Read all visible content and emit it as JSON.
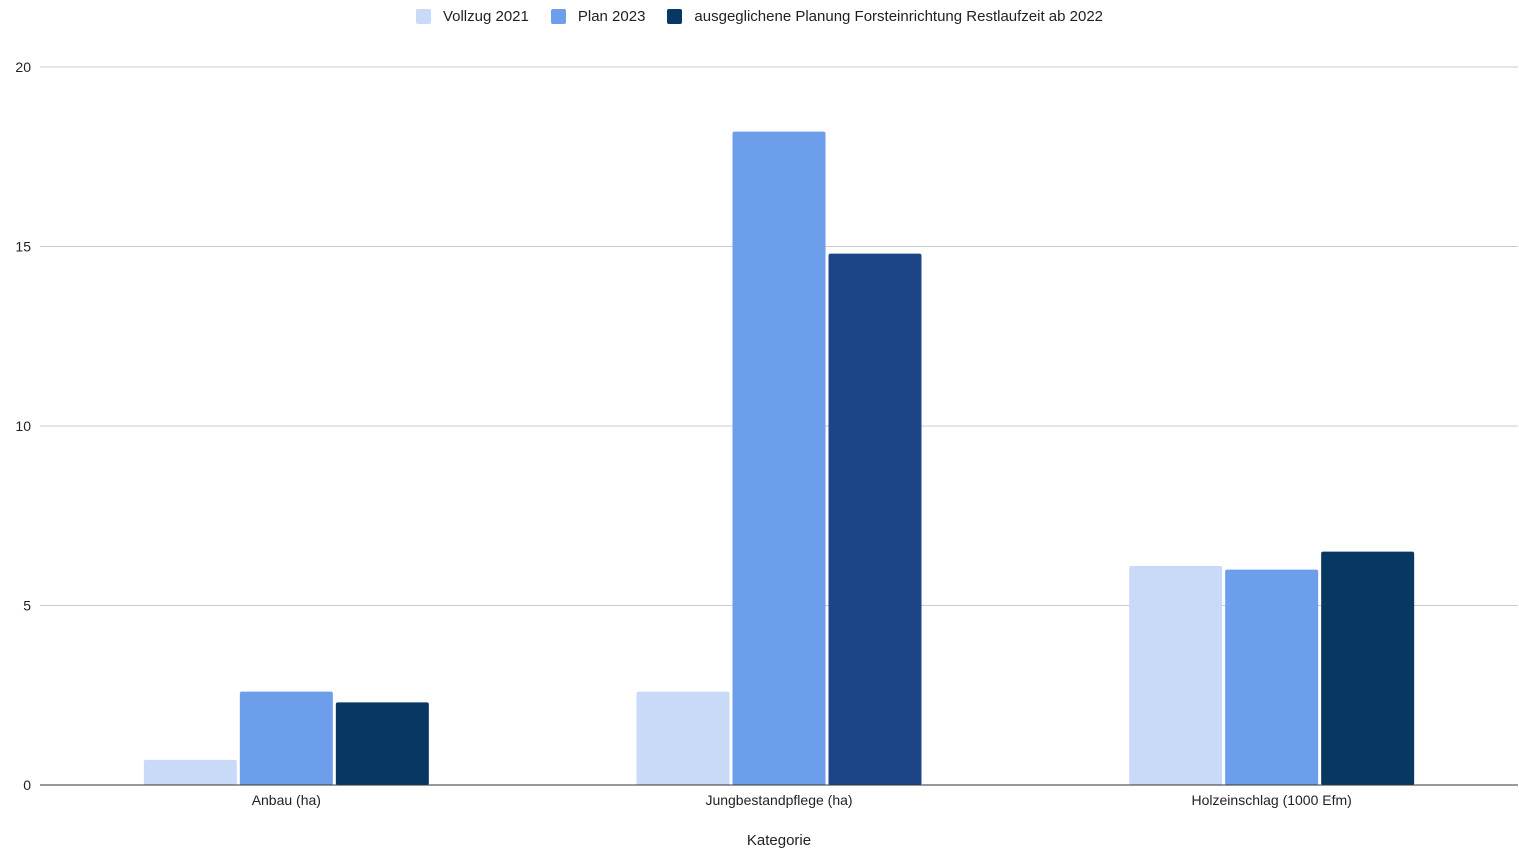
{
  "chart_data": {
    "type": "bar",
    "title": "",
    "xlabel": "Kategorie",
    "ylabel": "",
    "categories": [
      "Anbau (ha)",
      "Jungbestandpflege (ha)",
      "Holzeinschlag (1000 Efm)"
    ],
    "series": [
      {
        "name": "Vollzug 2021",
        "values": [
          0.7,
          2.6,
          6.1
        ],
        "color": "#c9daf8"
      },
      {
        "name": "Plan 2023",
        "values": [
          2.6,
          18.2,
          6.0
        ],
        "color": "#6d9eeb"
      },
      {
        "name": "ausgeglichene Planung Forsteinrichtung Restlaufzeit ab 2022",
        "values": [
          2.3,
          14.8,
          6.5
        ],
        "color": "#073763"
      }
    ],
    "highlighted_bar_colors": {
      "ausgeglichene Planung Forsteinrichtung Restlaufzeit ab 2022|Jungbestandpflege (ha)": "#1c4587"
    },
    "ylim": [
      0,
      20
    ],
    "yticks": [
      0,
      5,
      10,
      15,
      20
    ],
    "grid": true,
    "legend_position": "top-center"
  }
}
